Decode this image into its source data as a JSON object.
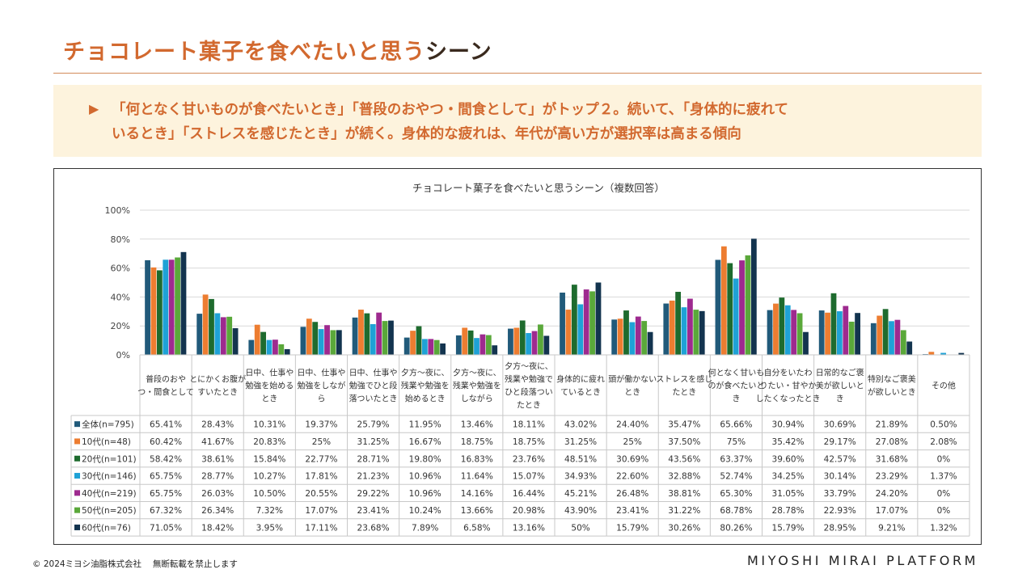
{
  "header": {
    "title_accent": "チョコレート菓子を食べたいと思う",
    "title_dark": "シーン"
  },
  "summary": {
    "arrow_icon": "triangle-right-icon",
    "line1": "「何となく甘いものが食べたいとき」「普段のおやつ・間食として」がトップ２。続いて、「身体的に疲れて",
    "line2": "いるとき」「ストレスを感じたとき」が続く。身体的な疲れは、年代が高い方が選択率は高まる傾向"
  },
  "footer": {
    "copyright": "© 2024ミヨシ油脂株式会社　 無断転載を禁止します",
    "brand": "MIYOSHI MIRAI PLATFORM"
  },
  "chart_data": {
    "type": "bar",
    "title": "チョコレート菓子を食べたいと思うシーン（複数回答）",
    "ylim": [
      0,
      100
    ],
    "yticks": [
      "0%",
      "20%",
      "40%",
      "60%",
      "80%",
      "100%"
    ],
    "grid": true,
    "categories": [
      [
        "普段のおや",
        "つ・間食として"
      ],
      [
        "とにかくお腹が",
        "すいたとき"
      ],
      [
        "日中、仕事や",
        "勉強を始める",
        "とき"
      ],
      [
        "日中、仕事や",
        "勉強をしなが",
        "ら"
      ],
      [
        "日中、仕事や",
        "勉強でひと段",
        "落ついたとき"
      ],
      [
        "夕方～夜に、",
        "残業や勉強を",
        "始めるとき"
      ],
      [
        "夕方～夜に、",
        "残業や勉強を",
        "しながら"
      ],
      [
        "夕方～夜に、",
        "残業や勉強で",
        "ひと段落つい",
        "たとき"
      ],
      [
        "身体的に疲れ",
        "ているとき"
      ],
      [
        "頭が働かない",
        "とき"
      ],
      [
        "ストレスを感じ",
        "たとき"
      ],
      [
        "何となく甘いも",
        "のが食べたいと",
        "き"
      ],
      [
        "自分をいたわ",
        "りたい・甘やか",
        "したくなったとき"
      ],
      [
        "日常的なご褒",
        "美が欲しいと",
        "き"
      ],
      [
        "特別なご褒美",
        "が欲しいとき"
      ],
      [
        "その他"
      ]
    ],
    "series": [
      {
        "name": "全体(n=795)",
        "color": "#215a7a",
        "values": [
          65.41,
          28.43,
          10.31,
          19.37,
          25.79,
          11.95,
          13.46,
          18.11,
          43.02,
          24.4,
          35.47,
          65.66,
          30.94,
          30.69,
          21.89,
          0.5
        ],
        "labels": [
          "65.41%",
          "28.43%",
          "10.31%",
          "19.37%",
          "25.79%",
          "11.95%",
          "13.46%",
          "18.11%",
          "43.02%",
          "24.40%",
          "35.47%",
          "65.66%",
          "30.94%",
          "30.69%",
          "21.89%",
          "0.50%"
        ]
      },
      {
        "name": "10代(n=48)",
        "color": "#ed7d31",
        "values": [
          60.42,
          41.67,
          20.83,
          25,
          31.25,
          16.67,
          18.75,
          18.75,
          31.25,
          25,
          37.5,
          75,
          35.42,
          29.17,
          27.08,
          2.08
        ],
        "labels": [
          "60.42%",
          "41.67%",
          "20.83%",
          "25%",
          "31.25%",
          "16.67%",
          "18.75%",
          "18.75%",
          "31.25%",
          "25%",
          "37.50%",
          "75%",
          "35.42%",
          "29.17%",
          "27.08%",
          "2.08%"
        ]
      },
      {
        "name": "20代(n=101)",
        "color": "#1e6b2e",
        "values": [
          58.42,
          38.61,
          15.84,
          22.77,
          28.71,
          19.8,
          16.83,
          23.76,
          48.51,
          30.69,
          43.56,
          63.37,
          39.6,
          42.57,
          31.68,
          0
        ],
        "labels": [
          "58.42%",
          "38.61%",
          "15.84%",
          "22.77%",
          "28.71%",
          "19.80%",
          "16.83%",
          "23.76%",
          "48.51%",
          "30.69%",
          "43.56%",
          "63.37%",
          "39.60%",
          "42.57%",
          "31.68%",
          "0%"
        ]
      },
      {
        "name": "30代(n=146)",
        "color": "#1fa2d6",
        "values": [
          65.75,
          28.77,
          10.27,
          17.81,
          21.23,
          10.96,
          11.64,
          15.07,
          34.93,
          22.6,
          32.88,
          52.74,
          34.25,
          30.14,
          23.29,
          1.37
        ],
        "labels": [
          "65.75%",
          "28.77%",
          "10.27%",
          "17.81%",
          "21.23%",
          "10.96%",
          "11.64%",
          "15.07%",
          "34.93%",
          "22.60%",
          "32.88%",
          "52.74%",
          "34.25%",
          "30.14%",
          "23.29%",
          "1.37%"
        ]
      },
      {
        "name": "40代(n=219)",
        "color": "#9e2a8f",
        "values": [
          65.75,
          26.03,
          10.5,
          20.55,
          29.22,
          10.96,
          14.16,
          16.44,
          45.21,
          26.48,
          38.81,
          65.3,
          31.05,
          33.79,
          24.2,
          0
        ],
        "labels": [
          "65.75%",
          "26.03%",
          "10.50%",
          "20.55%",
          "29.22%",
          "10.96%",
          "14.16%",
          "16.44%",
          "45.21%",
          "26.48%",
          "38.81%",
          "65.30%",
          "31.05%",
          "33.79%",
          "24.20%",
          "0%"
        ]
      },
      {
        "name": "50代(n=205)",
        "color": "#5aa83a",
        "values": [
          67.32,
          26.34,
          7.32,
          17.07,
          23.41,
          10.24,
          13.66,
          20.98,
          43.9,
          23.41,
          31.22,
          68.78,
          28.78,
          22.93,
          17.07,
          0
        ],
        "labels": [
          "67.32%",
          "26.34%",
          "7.32%",
          "17.07%",
          "23.41%",
          "10.24%",
          "13.66%",
          "20.98%",
          "43.90%",
          "23.41%",
          "31.22%",
          "68.78%",
          "28.78%",
          "22.93%",
          "17.07%",
          "0%"
        ]
      },
      {
        "name": "60代(n=76)",
        "color": "#13344f",
        "values": [
          71.05,
          18.42,
          3.95,
          17.11,
          23.68,
          7.89,
          6.58,
          13.16,
          50,
          15.79,
          30.26,
          80.26,
          15.79,
          28.95,
          9.21,
          1.32
        ],
        "labels": [
          "71.05%",
          "18.42%",
          "3.95%",
          "17.11%",
          "23.68%",
          "7.89%",
          "6.58%",
          "13.16%",
          "50%",
          "15.79%",
          "30.26%",
          "80.26%",
          "15.79%",
          "28.95%",
          "9.21%",
          "1.32%"
        ]
      }
    ]
  }
}
